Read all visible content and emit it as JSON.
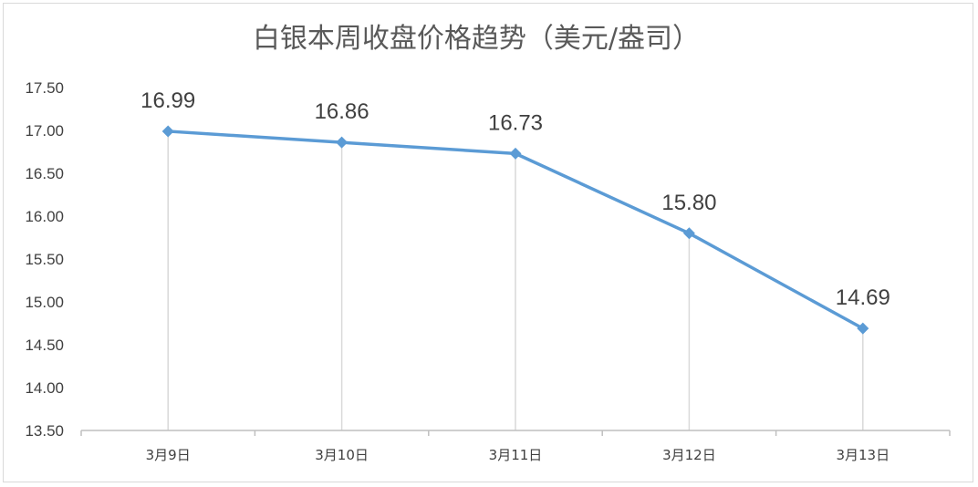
{
  "chart_data": {
    "type": "line",
    "title": "白银本周收盘价格趋势（美元/盎司）",
    "categories": [
      "3月9日",
      "3月10日",
      "3月11日",
      "3月12日",
      "3月13日"
    ],
    "values": [
      16.99,
      16.86,
      16.73,
      15.8,
      14.69
    ],
    "data_labels": [
      "16.99",
      "16.86",
      "16.73",
      "15.80",
      "14.69"
    ],
    "ylim": [
      13.5,
      17.5
    ],
    "yticks": [
      "13.50",
      "14.00",
      "14.50",
      "15.00",
      "15.50",
      "16.00",
      "16.50",
      "17.00",
      "17.50"
    ],
    "xlabel": "",
    "ylabel": "",
    "grid": "vertical drop lines",
    "legend": "none",
    "colors": {
      "line": "#5b9bd5",
      "marker": "#5b9bd5",
      "drop_line": "#d9d9d9",
      "axis": "#bfbfbf"
    }
  }
}
